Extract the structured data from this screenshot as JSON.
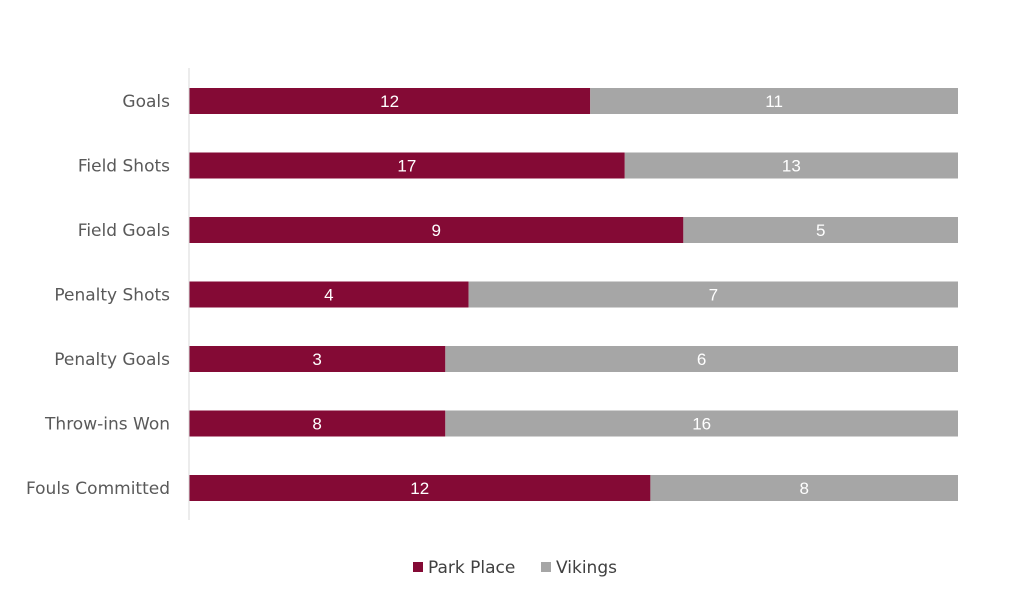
{
  "chart_data": {
    "type": "bar",
    "orientation": "horizontal",
    "stacked": "100%",
    "categories": [
      "Goals",
      "Field Shots",
      "Field Goals",
      "Penalty Shots",
      "Penalty Goals",
      "Throw-ins Won",
      "Fouls Committed"
    ],
    "series": [
      {
        "name": "Park Place",
        "values": [
          12,
          17,
          9,
          4,
          3,
          8,
          12
        ]
      },
      {
        "name": "Vikings",
        "values": [
          11,
          13,
          5,
          7,
          6,
          16,
          8
        ]
      }
    ],
    "title": "",
    "xlabel": "",
    "ylabel": "",
    "data_labels": true,
    "grid": false,
    "legend": "bottom",
    "colors": {
      "Park Place": "#840A35",
      "Vikings": "#A6A6A6",
      "axis": "#D9D9D9"
    }
  }
}
